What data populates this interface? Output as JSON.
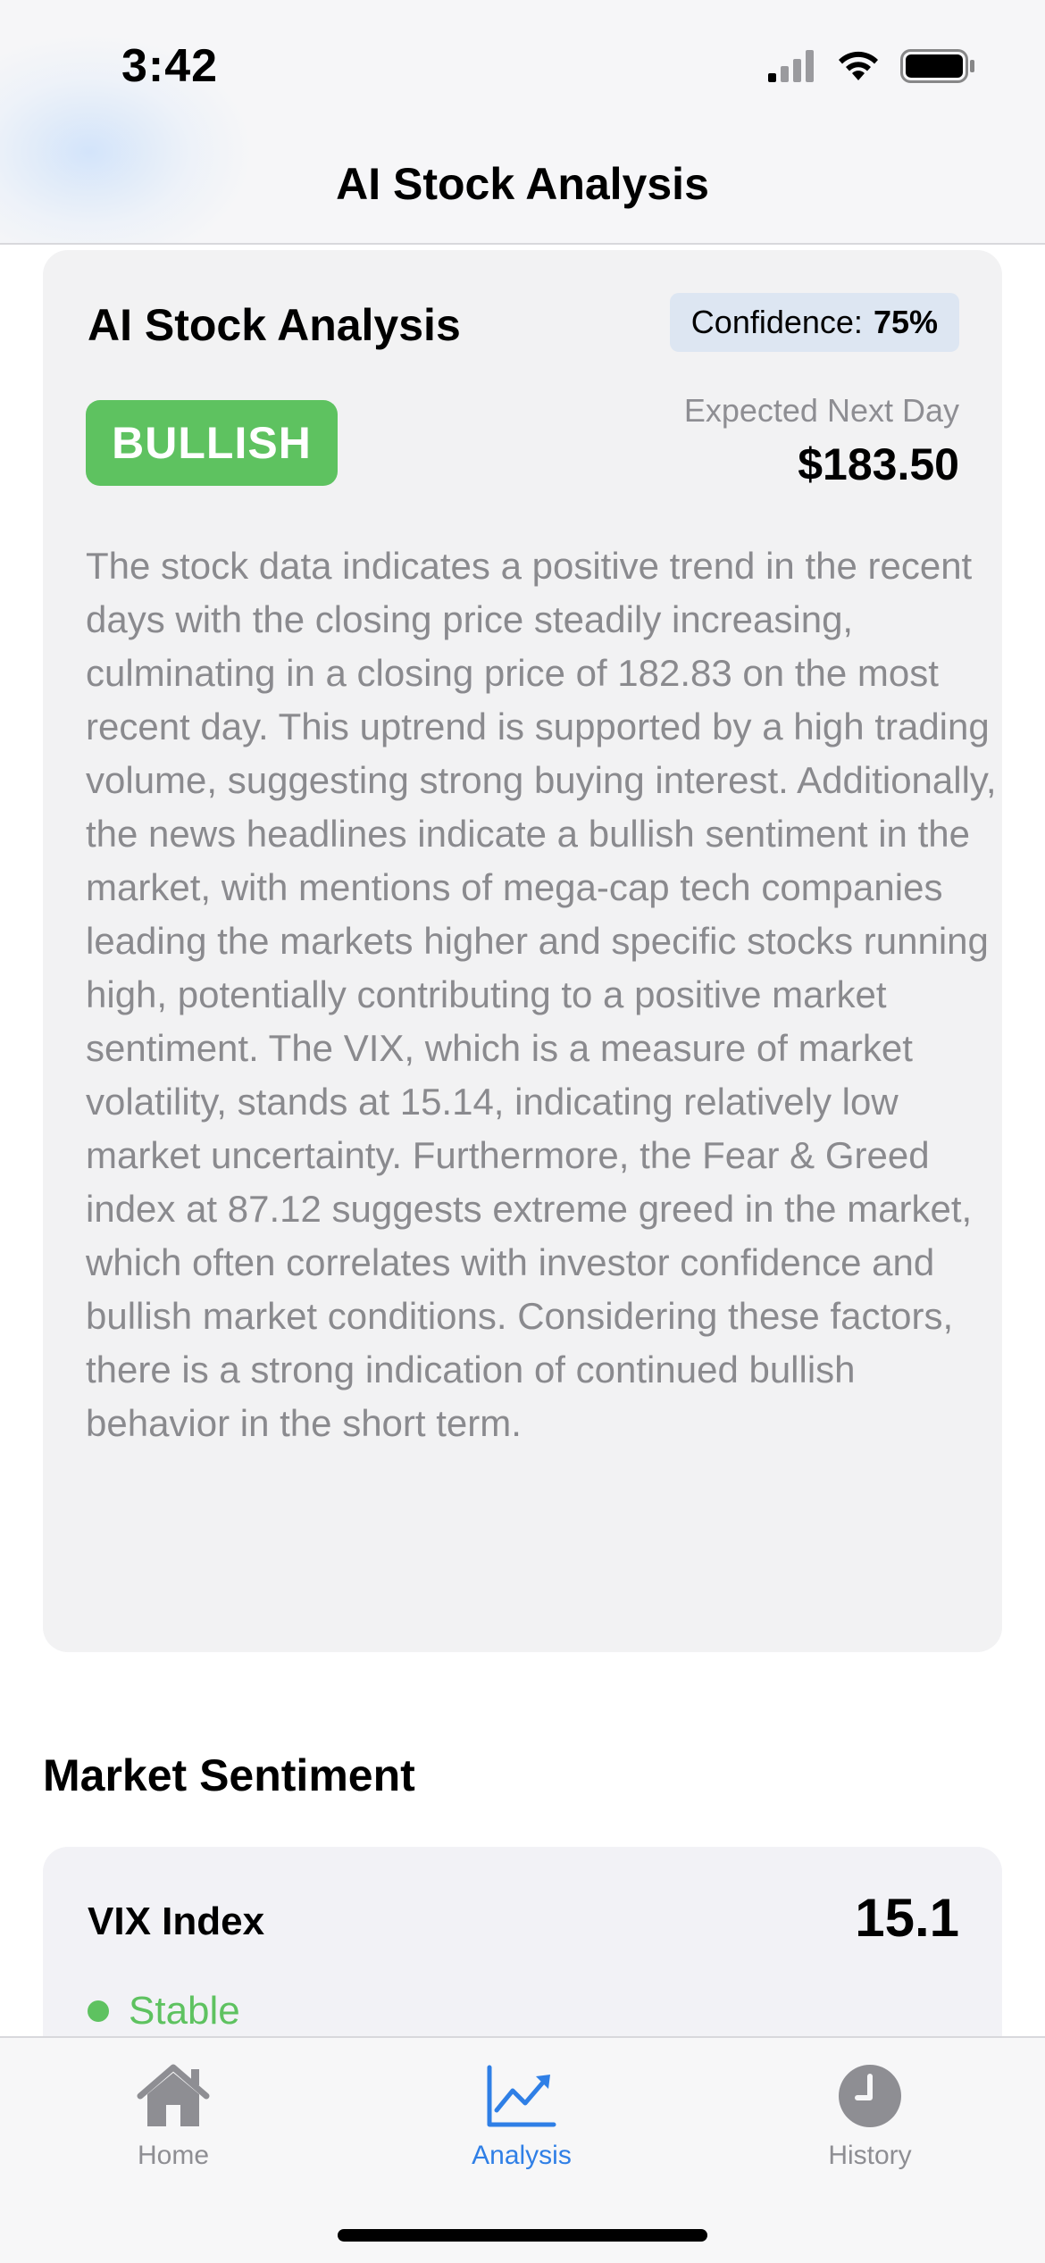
{
  "status_bar": {
    "time": "3:42",
    "icons": [
      "cellular-signal-icon",
      "wifi-icon",
      "battery-icon"
    ]
  },
  "nav": {
    "title": "AI Stock Analysis"
  },
  "analysis_card": {
    "title": "AI Stock Analysis",
    "confidence_label": "Confidence:",
    "confidence_value": "75%",
    "signal": "BULLISH",
    "expected_label": "Expected Next Day",
    "expected_price": "$183.50",
    "summary": "The stock data indicates a positive trend in the recent days with the closing price steadily increasing, culminating in a closing price of 182.83 on the most recent day. This uptrend is supported by a high trading volume, suggesting strong buying interest. Additionally, the news headlines indicate a bullish sentiment in the market, with mentions of mega-cap tech companies leading the markets higher and specific stocks running high, potentially contributing to a positive market sentiment. The VIX, which is a measure of market volatility, stands at 15.14, indicating relatively low market uncertainty. Furthermore, the Fear & Greed index at 87.12 suggests extreme greed in the market, which often correlates with investor confidence and bullish market conditions. Considering these factors, there is a strong indication of continued bullish behavior in the short term."
  },
  "market_sentiment": {
    "title": "Market Sentiment",
    "vix": {
      "label": "VIX Index",
      "value": "15.1",
      "status": "Stable"
    }
  },
  "tab_bar": {
    "tabs": [
      {
        "label": "Home",
        "icon": "house-icon",
        "active": false
      },
      {
        "label": "Analysis",
        "icon": "chart-line-icon",
        "active": true
      },
      {
        "label": "History",
        "icon": "clock-icon",
        "active": false
      }
    ]
  },
  "colors": {
    "accent": "#2f7fe6",
    "bullish": "#5ec260",
    "muted_text": "#8a8a8e",
    "card_bg": "#f2f2f3",
    "confidence_bg": "#dde6f2"
  }
}
